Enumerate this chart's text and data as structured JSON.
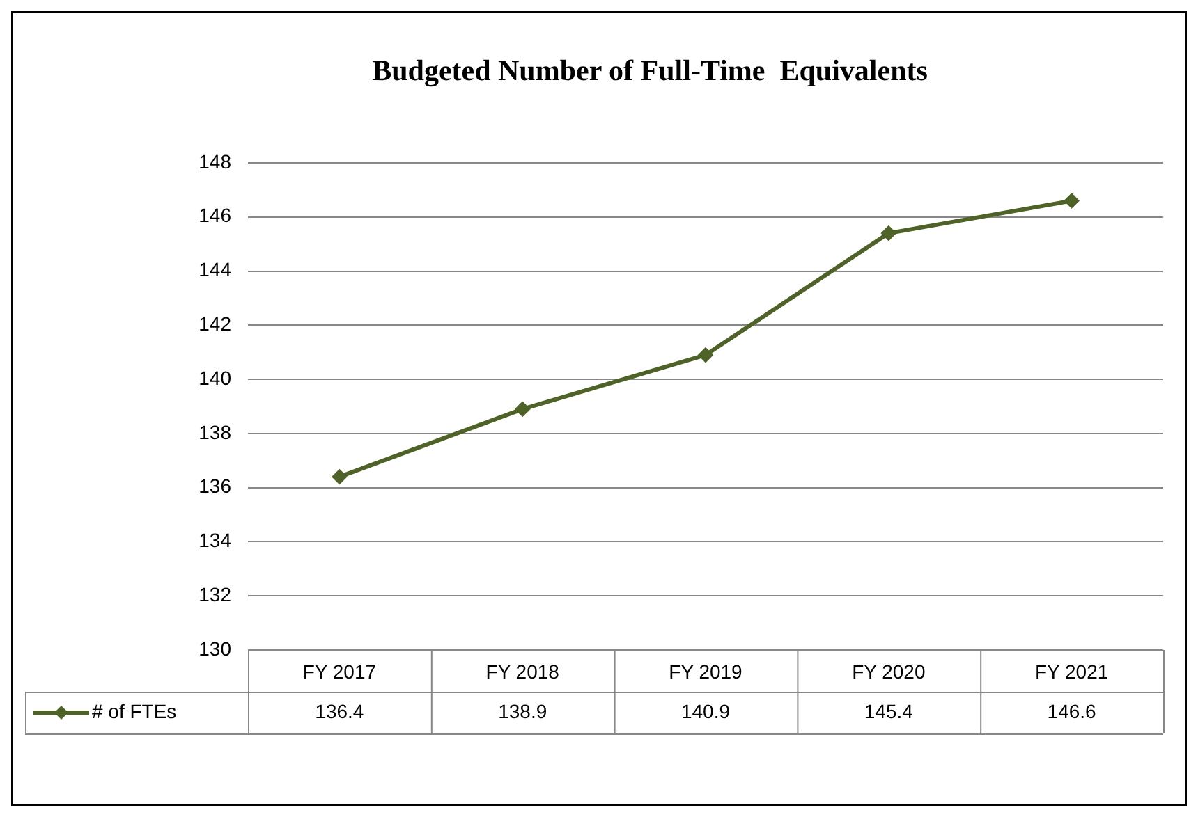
{
  "chart_data": {
    "type": "line",
    "title": "Budgeted Number of Full-Time  Equivalents",
    "categories": [
      "FY 2017",
      "FY 2018",
      "FY 2019",
      "FY 2020",
      "FY 2021"
    ],
    "series": [
      {
        "name": "# of FTEs",
        "color": "#4f6228",
        "values": [
          136.4,
          138.9,
          140.9,
          145.4,
          146.6
        ]
      }
    ],
    "ylim": [
      130,
      148
    ],
    "yticks": [
      130,
      132,
      134,
      136,
      138,
      140,
      142,
      144,
      146,
      148
    ],
    "grid": "y",
    "legend": "bottom left",
    "marker": "diamond",
    "line_style": "solid",
    "data_labels": true
  }
}
